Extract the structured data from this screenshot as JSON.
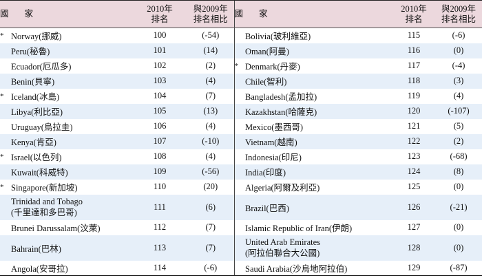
{
  "header": {
    "left": {
      "country": "國  家",
      "rank_2010": "2010年\n排名",
      "change_2009": "與2009年\n排名相比"
    },
    "right": {
      "country": "國  家",
      "rank_2010": "2010年\n排名",
      "change_2009": "與2009年\n排名相比"
    }
  },
  "rows": [
    {
      "lm": "*",
      "lc": "Norway(挪威)",
      "lr": "100",
      "lx": "(-54)",
      "rm": "",
      "rc": "Bolivia(玻利維亞)",
      "rr": "115",
      "rx": "(-6)"
    },
    {
      "lm": "",
      "lc": "Peru(秘魯)",
      "lr": "101",
      "lx": "(14)",
      "rm": "",
      "rc": "Oman(阿曼)",
      "rr": "116",
      "rx": "(0)"
    },
    {
      "lm": "",
      "lc": "Ecuador(厄瓜多)",
      "lr": "102",
      "lx": "(2)",
      "rm": "*",
      "rc": "Denmark(丹麥)",
      "rr": "117",
      "rx": "(-4)"
    },
    {
      "lm": "",
      "lc": "Benin(貝寧)",
      "lr": "103",
      "lx": "(4)",
      "rm": "",
      "rc": "Chile(智利)",
      "rr": "118",
      "rx": "(3)"
    },
    {
      "lm": "*",
      "lc": "Iceland(冰島)",
      "lr": "104",
      "lx": "(7)",
      "rm": "",
      "rc": "Bangladesh(孟加拉)",
      "rr": "119",
      "rx": "(4)"
    },
    {
      "lm": "",
      "lc": "Libya(利比亞)",
      "lr": "105",
      "lx": "(13)",
      "rm": "",
      "rc": "Kazakhstan(哈薩克)",
      "rr": "120",
      "rx": "(-107)"
    },
    {
      "lm": "",
      "lc": "Uruguay(烏拉圭)",
      "lr": "106",
      "lx": "(4)",
      "rm": "",
      "rc": "Mexico(墨西哥)",
      "rr": "121",
      "rx": "(5)"
    },
    {
      "lm": "",
      "lc": "Kenya(肯亞)",
      "lr": "107",
      "lx": "(-10)",
      "rm": "",
      "rc": "Vietnam(越南)",
      "rr": "122",
      "rx": "(2)"
    },
    {
      "lm": "*",
      "lc": "Israel(以色列)",
      "lr": "108",
      "lx": "(4)",
      "rm": "",
      "rc": "Indonesia(印尼)",
      "rr": "123",
      "rx": "(-68)"
    },
    {
      "lm": "",
      "lc": "Kuwait(科威特)",
      "lr": "109",
      "lx": "(-56)",
      "rm": "",
      "rc": "India(印度)",
      "rr": "124",
      "rx": "(8)"
    },
    {
      "lm": "*",
      "lc": "Singapore(新加坡)",
      "lr": "110",
      "lx": "(20)",
      "rm": "",
      "rc": "Algeria(阿爾及利亞)",
      "rr": "125",
      "rx": "(0)"
    },
    {
      "lm": "",
      "lc": "Trinidad and Tobago\n(千里達和多巴哥)",
      "lr": "111",
      "lx": "(6)",
      "rm": "",
      "rc": "Brazil(巴西)",
      "rr": "126",
      "rx": "(-21)"
    },
    {
      "lm": "",
      "lc": "Brunei Darussalam(汶萊)",
      "lr": "112",
      "lx": "(7)",
      "rm": "",
      "rc": "Islamic Republic of Iran(伊朗)",
      "rr": "127",
      "rx": "(0)"
    },
    {
      "lm": "",
      "lc": "Bahrain(巴林)",
      "lr": "113",
      "lx": "(7)",
      "rm": "",
      "rc": "United Arab Emirates\n(阿拉伯聯合大公國)",
      "rr": "128",
      "rx": "(0)"
    },
    {
      "lm": "",
      "lc": "Angola(安哥拉)",
      "lr": "114",
      "lx": "(-6)",
      "rm": "",
      "rc": "Saudi Arabia(沙烏地阿拉伯)",
      "rr": "129",
      "rx": "(-87)"
    }
  ]
}
